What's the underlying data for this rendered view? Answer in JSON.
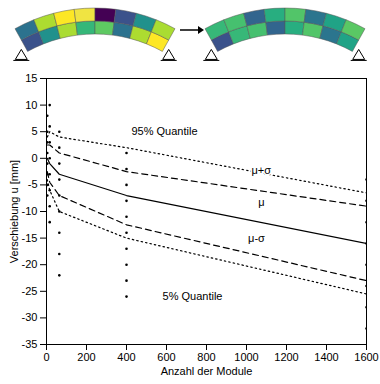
{
  "chart_data": {
    "type": "line",
    "x_label": "Anzahl der Module",
    "y_label": "Verschiebung u [mm]",
    "xlim": [
      0,
      1600
    ],
    "xticks": [
      0,
      200,
      400,
      600,
      800,
      1000,
      1200,
      1400,
      1600
    ],
    "ylim": [
      -35,
      15
    ],
    "yticks": [
      -35,
      -30,
      -25,
      -20,
      -15,
      -10,
      -5,
      0,
      5,
      10,
      15
    ],
    "grid": false,
    "x": [
      4,
      16,
      64,
      400,
      1600
    ],
    "series": [
      {
        "name": "95% Quantile",
        "color": "#000000",
        "line_style": "dotted",
        "values": [
          4,
          5,
          4,
          2,
          -6.5
        ],
        "label": {
          "x": 590,
          "y": 5
        }
      },
      {
        "name": "μ+σ",
        "color": "#000000",
        "line_style": "dashed",
        "values": [
          2.5,
          2.5,
          1,
          -2.5,
          -9
        ],
        "label": {
          "x": 1074,
          "y": -2.3
        }
      },
      {
        "name": "μ",
        "color": "#000000",
        "line_style": "solid",
        "values": [
          0,
          -1,
          -3,
          -7,
          -16
        ],
        "label": {
          "x": 1074,
          "y": -8.3
        }
      },
      {
        "name": "μ-σ",
        "color": "#000000",
        "line_style": "dashed",
        "values": [
          -2.5,
          -4.5,
          -7,
          -12.5,
          -23
        ],
        "label": {
          "x": 1050,
          "y": -15
        }
      },
      {
        "name": "5% Quantile",
        "color": "#000000",
        "line_style": "dotted",
        "values": [
          -4,
          -6,
          -10,
          -15,
          -25.5
        ],
        "label": {
          "x": 730,
          "y": -26
        }
      }
    ],
    "points": {
      "type": "scatter",
      "marker": "dot",
      "color": "#000000",
      "x": [
        4,
        4,
        4,
        4,
        4,
        4,
        4,
        4,
        16,
        16,
        16,
        16,
        16,
        16,
        16,
        16,
        64,
        64,
        64,
        64,
        64,
        64,
        64,
        64,
        64,
        400,
        400,
        400,
        400,
        400,
        400,
        400,
        400,
        400,
        400,
        1600,
        1600,
        1600,
        1600,
        1600,
        1600,
        1600,
        1600
      ],
      "values": [
        8,
        5,
        3,
        1,
        -1,
        -3,
        -5,
        -7,
        10,
        6,
        3,
        0,
        -3,
        -6,
        -9,
        -12,
        5,
        2,
        -1,
        -4,
        -7,
        -10,
        -14,
        -18,
        -22,
        1,
        -2,
        -5,
        -8,
        -11,
        -14,
        -17,
        -20,
        -23,
        -26,
        -4,
        -8,
        -12,
        -16,
        -20,
        -24,
        -28,
        -32
      ]
    }
  }
}
